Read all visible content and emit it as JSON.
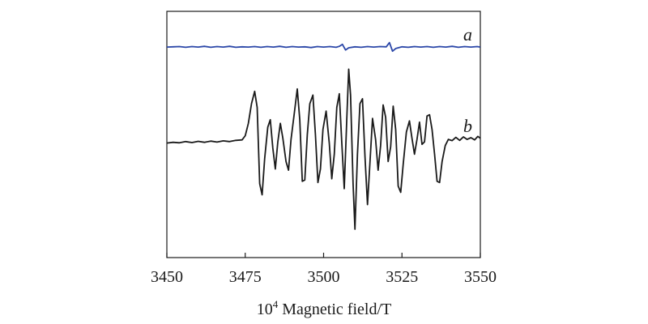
{
  "chart_data": {
    "type": "line",
    "xlabel_prefix": "10",
    "xlabel_exponent": "4",
    "xlabel_rest": " Magnetic field/T",
    "xlim": [
      3450,
      3550
    ],
    "ylim": [
      0,
      1
    ],
    "xticks": [
      3450,
      3475,
      3500,
      3525,
      3550
    ],
    "xtick_labels": [
      "3450",
      "3475",
      "3500",
      "3525",
      "3550"
    ],
    "grid": false,
    "series": [
      {
        "label": "a",
        "color": "#2b47a8",
        "points": [
          [
            3450,
            0.855
          ],
          [
            3452,
            0.856
          ],
          [
            3454,
            0.857
          ],
          [
            3456,
            0.854
          ],
          [
            3458,
            0.857
          ],
          [
            3460,
            0.855
          ],
          [
            3462,
            0.858
          ],
          [
            3464,
            0.854
          ],
          [
            3466,
            0.857
          ],
          [
            3468,
            0.855
          ],
          [
            3470,
            0.858
          ],
          [
            3472,
            0.854
          ],
          [
            3474,
            0.856
          ],
          [
            3476,
            0.855
          ],
          [
            3478,
            0.857
          ],
          [
            3480,
            0.854
          ],
          [
            3482,
            0.857
          ],
          [
            3484,
            0.855
          ],
          [
            3486,
            0.858
          ],
          [
            3488,
            0.854
          ],
          [
            3490,
            0.857
          ],
          [
            3492,
            0.855
          ],
          [
            3494,
            0.856
          ],
          [
            3496,
            0.853
          ],
          [
            3498,
            0.857
          ],
          [
            3500,
            0.855
          ],
          [
            3502,
            0.857
          ],
          [
            3504,
            0.854
          ],
          [
            3505,
            0.858
          ],
          [
            3506,
            0.866
          ],
          [
            3507,
            0.843
          ],
          [
            3508,
            0.852
          ],
          [
            3510,
            0.856
          ],
          [
            3512,
            0.854
          ],
          [
            3514,
            0.857
          ],
          [
            3516,
            0.855
          ],
          [
            3518,
            0.857
          ],
          [
            3520,
            0.856
          ],
          [
            3521,
            0.873
          ],
          [
            3522,
            0.838
          ],
          [
            3523,
            0.849
          ],
          [
            3525,
            0.856
          ],
          [
            3527,
            0.854
          ],
          [
            3529,
            0.857
          ],
          [
            3531,
            0.855
          ],
          [
            3533,
            0.857
          ],
          [
            3535,
            0.854
          ],
          [
            3537,
            0.857
          ],
          [
            3539,
            0.855
          ],
          [
            3541,
            0.858
          ],
          [
            3543,
            0.854
          ],
          [
            3545,
            0.857
          ],
          [
            3547,
            0.855
          ],
          [
            3549,
            0.857
          ],
          [
            3550,
            0.855
          ]
        ]
      },
      {
        "label": "b",
        "color": "#1a1a1a",
        "points": [
          [
            3450,
            0.465
          ],
          [
            3452,
            0.468
          ],
          [
            3454,
            0.466
          ],
          [
            3456,
            0.471
          ],
          [
            3458,
            0.467
          ],
          [
            3460,
            0.472
          ],
          [
            3462,
            0.468
          ],
          [
            3464,
            0.473
          ],
          [
            3466,
            0.469
          ],
          [
            3468,
            0.474
          ],
          [
            3470,
            0.471
          ],
          [
            3472,
            0.476
          ],
          [
            3474,
            0.478
          ],
          [
            3475,
            0.495
          ],
          [
            3476,
            0.545
          ],
          [
            3477,
            0.625
          ],
          [
            3478,
            0.675
          ],
          [
            3478.8,
            0.61
          ],
          [
            3479.6,
            0.3
          ],
          [
            3480.4,
            0.255
          ],
          [
            3481.2,
            0.4
          ],
          [
            3482.2,
            0.53
          ],
          [
            3483.0,
            0.56
          ],
          [
            3483.8,
            0.445
          ],
          [
            3484.6,
            0.36
          ],
          [
            3485.4,
            0.47
          ],
          [
            3486.2,
            0.545
          ],
          [
            3487.0,
            0.485
          ],
          [
            3488.0,
            0.39
          ],
          [
            3488.8,
            0.355
          ],
          [
            3489.6,
            0.48
          ],
          [
            3490.6,
            0.58
          ],
          [
            3491.6,
            0.685
          ],
          [
            3492.4,
            0.56
          ],
          [
            3493.2,
            0.31
          ],
          [
            3494.0,
            0.315
          ],
          [
            3494.8,
            0.5
          ],
          [
            3495.6,
            0.625
          ],
          [
            3496.6,
            0.66
          ],
          [
            3497.4,
            0.5
          ],
          [
            3498.2,
            0.305
          ],
          [
            3499.0,
            0.36
          ],
          [
            3499.8,
            0.52
          ],
          [
            3500.8,
            0.595
          ],
          [
            3501.8,
            0.465
          ],
          [
            3502.6,
            0.32
          ],
          [
            3503.4,
            0.42
          ],
          [
            3504.2,
            0.61
          ],
          [
            3505.0,
            0.665
          ],
          [
            3505.8,
            0.47
          ],
          [
            3506.6,
            0.28
          ],
          [
            3507.4,
            0.56
          ],
          [
            3508.0,
            0.765
          ],
          [
            3508.6,
            0.66
          ],
          [
            3509.4,
            0.3
          ],
          [
            3510.0,
            0.115
          ],
          [
            3510.8,
            0.42
          ],
          [
            3511.6,
            0.625
          ],
          [
            3512.4,
            0.645
          ],
          [
            3513.2,
            0.41
          ],
          [
            3514.0,
            0.215
          ],
          [
            3514.8,
            0.39
          ],
          [
            3515.6,
            0.565
          ],
          [
            3516.6,
            0.48
          ],
          [
            3517.4,
            0.355
          ],
          [
            3518.2,
            0.455
          ],
          [
            3519.0,
            0.62
          ],
          [
            3519.8,
            0.57
          ],
          [
            3520.6,
            0.39
          ],
          [
            3521.4,
            0.45
          ],
          [
            3522.2,
            0.615
          ],
          [
            3523.0,
            0.52
          ],
          [
            3523.8,
            0.29
          ],
          [
            3524.6,
            0.265
          ],
          [
            3525.4,
            0.38
          ],
          [
            3526.4,
            0.51
          ],
          [
            3527.4,
            0.555
          ],
          [
            3528.2,
            0.485
          ],
          [
            3529.0,
            0.42
          ],
          [
            3529.8,
            0.48
          ],
          [
            3530.6,
            0.55
          ],
          [
            3531.4,
            0.46
          ],
          [
            3532.2,
            0.47
          ],
          [
            3533.0,
            0.575
          ],
          [
            3533.8,
            0.58
          ],
          [
            3534.6,
            0.52
          ],
          [
            3535.4,
            0.42
          ],
          [
            3536.2,
            0.31
          ],
          [
            3537.0,
            0.305
          ],
          [
            3537.8,
            0.39
          ],
          [
            3538.8,
            0.455
          ],
          [
            3539.8,
            0.48
          ],
          [
            3541.0,
            0.475
          ],
          [
            3542.2,
            0.488
          ],
          [
            3543.4,
            0.476
          ],
          [
            3544.6,
            0.49
          ],
          [
            3545.8,
            0.48
          ],
          [
            3547.0,
            0.487
          ],
          [
            3548.2,
            0.478
          ],
          [
            3549.2,
            0.492
          ],
          [
            3550,
            0.485
          ]
        ]
      }
    ]
  }
}
